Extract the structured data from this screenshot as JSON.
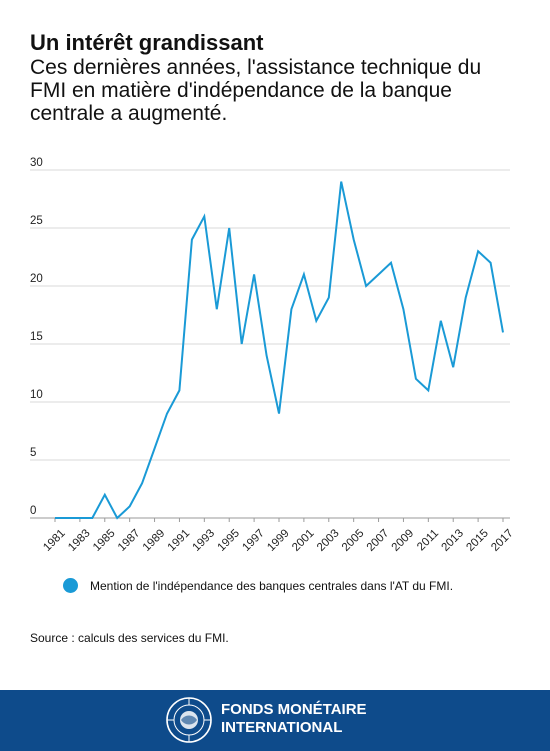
{
  "header": {
    "title": "Un intérêt grandissant",
    "subtitle": "Ces dernières années, l'assistance technique du FMI en matière d'indépendance de la banque centrale a augmenté."
  },
  "chart_data": {
    "type": "line",
    "title": "",
    "xlabel": "",
    "ylabel": "",
    "x": [
      1981,
      1982,
      1983,
      1984,
      1985,
      1986,
      1987,
      1988,
      1989,
      1990,
      1991,
      1992,
      1993,
      1994,
      1995,
      1996,
      1997,
      1998,
      1999,
      2000,
      2001,
      2002,
      2003,
      2004,
      2005,
      2006,
      2007,
      2008,
      2009,
      2010,
      2011,
      2012,
      2013,
      2014,
      2015,
      2016,
      2017
    ],
    "x_tick_labels": [
      "1981",
      "1983",
      "1985",
      "1987",
      "1989",
      "1991",
      "1993",
      "1995",
      "1997",
      "1999",
      "2001",
      "2003",
      "2005",
      "2007",
      "2009",
      "2011",
      "2013",
      "2015",
      "2017"
    ],
    "y_ticks": [
      0,
      5,
      10,
      15,
      20,
      25,
      30
    ],
    "ylim": [
      0,
      30
    ],
    "grid": true,
    "series": [
      {
        "name": "Mention de l'indépendance des banques centrales dans l'AT du FMI.",
        "color": "#1a9ad6",
        "values": [
          0,
          0,
          0,
          0,
          2,
          0,
          1,
          3,
          6,
          9,
          11,
          24,
          26,
          18,
          25,
          15,
          21,
          14,
          9,
          18,
          21,
          17,
          19,
          29,
          24,
          20,
          21,
          22,
          18,
          12,
          11,
          17,
          13,
          19,
          23,
          22,
          16
        ]
      }
    ],
    "legend_position": "bottom"
  },
  "legend": {
    "label": "Mention de l'indépendance des banques centrales dans l'AT du FMI.",
    "color": "#1a9ad6"
  },
  "source": "Source : calculs des services du FMI.",
  "footer": {
    "name_line1": "FONDS MONÉTAIRE",
    "name_line2": "INTERNATIONAL",
    "logo_icon": "imf-seal-icon",
    "background": "#0e4b8b"
  }
}
